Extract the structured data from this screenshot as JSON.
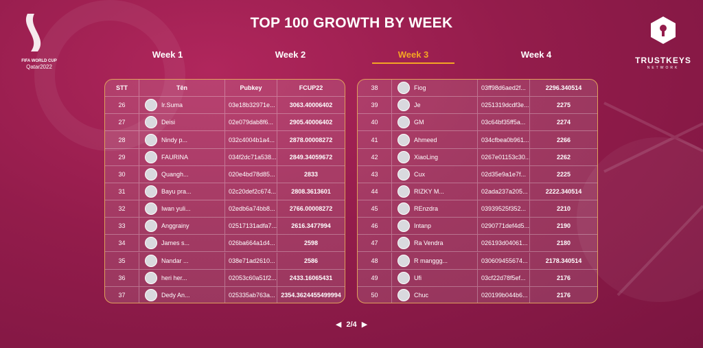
{
  "logo_left": {
    "line1": "FIFA WORLD CUP",
    "line2": "Qatar2022"
  },
  "logo_right": {
    "name": "TRUSTKEYS",
    "sub": "NETWORK"
  },
  "title": "TOP 100 GROWTH BY WEEK",
  "tabs": [
    "Week 1",
    "Week 2",
    "Week 3",
    "Week 4"
  ],
  "active_tab": 2,
  "table": {
    "headers": [
      "STT",
      "Tên",
      "Pubkey",
      "FCUP22"
    ],
    "left_rows": [
      [
        "26",
        "Ir.Suma",
        "03e18b32971e...",
        "3063.40006402"
      ],
      [
        "27",
        "Deisi",
        "02e079dab8f6...",
        "2905.40006402"
      ],
      [
        "28",
        "Nindy p...",
        "032c4004b1a4...",
        "2878.00008272"
      ],
      [
        "29",
        "FAURINA",
        "034f2dc71a538...",
        "2849.34059672"
      ],
      [
        "30",
        "Quangh...",
        "020e4bd78d85...",
        "2833"
      ],
      [
        "31",
        "Bayu pra...",
        "02c20def2c674...",
        "2808.3613601"
      ],
      [
        "32",
        "Iwan yuli...",
        "02edb6a74bb8...",
        "2766.00008272"
      ],
      [
        "33",
        "Anggrainy",
        "02517131adfa7...",
        "2616.3477994"
      ],
      [
        "34",
        "James s...",
        "026ba664a1d4...",
        "2598"
      ],
      [
        "35",
        "Nandar ...",
        "038e71ad2610...",
        "2586"
      ],
      [
        "36",
        "heri her...",
        "02053c60a51f2...",
        "2433.16065431"
      ],
      [
        "37",
        "Dedy An...",
        "025335ab763a...",
        "2354.3624455499994"
      ]
    ],
    "right_rows": [
      [
        "38",
        "Fiog",
        "03ff98d6aed2f...",
        "2296.340514"
      ],
      [
        "39",
        "Je",
        "0251319dcdf3e...",
        "2275"
      ],
      [
        "40",
        "GM",
        "03c64bf35ff5a...",
        "2274"
      ],
      [
        "41",
        "Ahmeed",
        "034cfbea0b961...",
        "2266"
      ],
      [
        "42",
        "XiaoLing",
        "0267e01153c30...",
        "2262"
      ],
      [
        "43",
        "Cux",
        "02d35e9a1e7f...",
        "2225"
      ],
      [
        "44",
        "RIZKY M...",
        "02ada237a205...",
        "2222.340514"
      ],
      [
        "45",
        "REnzdra",
        "03939525f352...",
        "2210"
      ],
      [
        "46",
        "Intanp",
        "0290771def4d5...",
        "2190"
      ],
      [
        "47",
        "Ra Vendra",
        "026193d04061...",
        "2180"
      ],
      [
        "48",
        "R manggg...",
        "030609455674...",
        "2178.340514"
      ],
      [
        "49",
        "Ufi",
        "03cf22d78f5ef...",
        "2176"
      ],
      [
        "50",
        "Chuc",
        "020199b044b6...",
        "2176"
      ]
    ]
  },
  "pagination": "2/4"
}
